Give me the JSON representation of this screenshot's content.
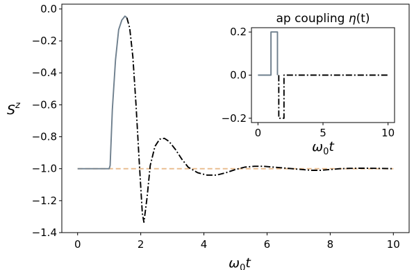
{
  "chart_data": [
    {
      "type": "line",
      "panel": "main",
      "title": "",
      "xlabel_base": "ω",
      "xlabel_sub": "0",
      "xlabel_var": "t",
      "ylabel_base": "S",
      "ylabel_sup": "z",
      "xlim": [
        -0.5,
        10.5
      ],
      "ylim": [
        -1.4,
        0.03
      ],
      "xticks": [
        0,
        2,
        4,
        6,
        8,
        10
      ],
      "xtick_labels": [
        "0",
        "2",
        "4",
        "6",
        "8",
        "10"
      ],
      "yticks": [
        0.0,
        -0.2,
        -0.4,
        -0.6,
        -0.8,
        -1.0,
        -1.2,
        -1.4
      ],
      "ytick_labels": [
        "0.0",
        "−0.2",
        "−0.4",
        "−0.6",
        "−0.8",
        "−1.0",
        "−1.2",
        "−1.4"
      ],
      "grid": false,
      "series": [
        {
          "style": "dashed",
          "color": "#e8b98a",
          "x": [
            0,
            10
          ],
          "y": [
            -1.0,
            -1.0
          ]
        },
        {
          "style": "solid",
          "color": "#6e7f8d",
          "x": [
            0,
            1.0,
            1.03,
            1.1,
            1.2,
            1.3,
            1.4,
            1.5,
            1.56
          ],
          "y": [
            -1.0,
            -1.0,
            -0.98,
            -0.63,
            -0.32,
            -0.13,
            -0.07,
            -0.045,
            -0.055
          ]
        },
        {
          "style": "dashdot",
          "color": "#000000",
          "x": [
            1.56,
            1.65,
            1.75,
            1.85,
            1.95,
            2.05,
            2.1,
            2.2,
            2.3,
            2.45,
            2.6,
            2.75,
            2.9,
            3.1,
            3.3,
            3.5,
            3.8,
            4.1,
            4.4,
            4.7,
            5.0,
            5.3,
            5.6,
            5.9,
            6.2,
            6.5,
            6.8,
            7.1,
            7.4,
            7.7,
            8.0,
            8.3,
            8.6,
            8.9,
            9.2,
            9.5,
            9.8,
            10.0
          ],
          "y": [
            -0.055,
            -0.12,
            -0.3,
            -0.6,
            -0.95,
            -1.28,
            -1.335,
            -1.18,
            -0.98,
            -0.86,
            -0.815,
            -0.81,
            -0.83,
            -0.88,
            -0.94,
            -0.99,
            -1.025,
            -1.04,
            -1.04,
            -1.025,
            -1.005,
            -0.99,
            -0.985,
            -0.985,
            -0.99,
            -0.995,
            -1.0,
            -1.005,
            -1.01,
            -1.01,
            -1.005,
            -1.0,
            -0.998,
            -0.997,
            -0.997,
            -0.998,
            -0.999,
            -1.0
          ]
        }
      ]
    },
    {
      "type": "line",
      "panel": "inset",
      "title_prefix": "ap coupling ",
      "title_var": "η",
      "title_suffix": "(t)",
      "xlabel_base": "ω",
      "xlabel_sub": "0",
      "xlabel_var": "t",
      "xlim": [
        -0.5,
        10.5
      ],
      "ylim": [
        -0.22,
        0.22
      ],
      "xticks": [
        0,
        5,
        10
      ],
      "xtick_labels": [
        "0",
        "5",
        "10"
      ],
      "yticks": [
        0.2,
        0.0,
        -0.2
      ],
      "ytick_labels": [
        "0.2",
        "0.0",
        "−0.2"
      ],
      "grid": false,
      "series": [
        {
          "style": "solid",
          "color": "#6e7f8d",
          "x": [
            0,
            1.0,
            1.0,
            1.5,
            1.5
          ],
          "y": [
            0.0,
            0.0,
            0.2,
            0.2,
            0.0
          ]
        },
        {
          "style": "dashdot",
          "color": "#000000",
          "x": [
            1.6,
            1.6,
            2.0,
            2.0,
            10.0
          ],
          "y": [
            0.0,
            -0.2,
            -0.2,
            0.0,
            0.0
          ]
        }
      ]
    }
  ]
}
